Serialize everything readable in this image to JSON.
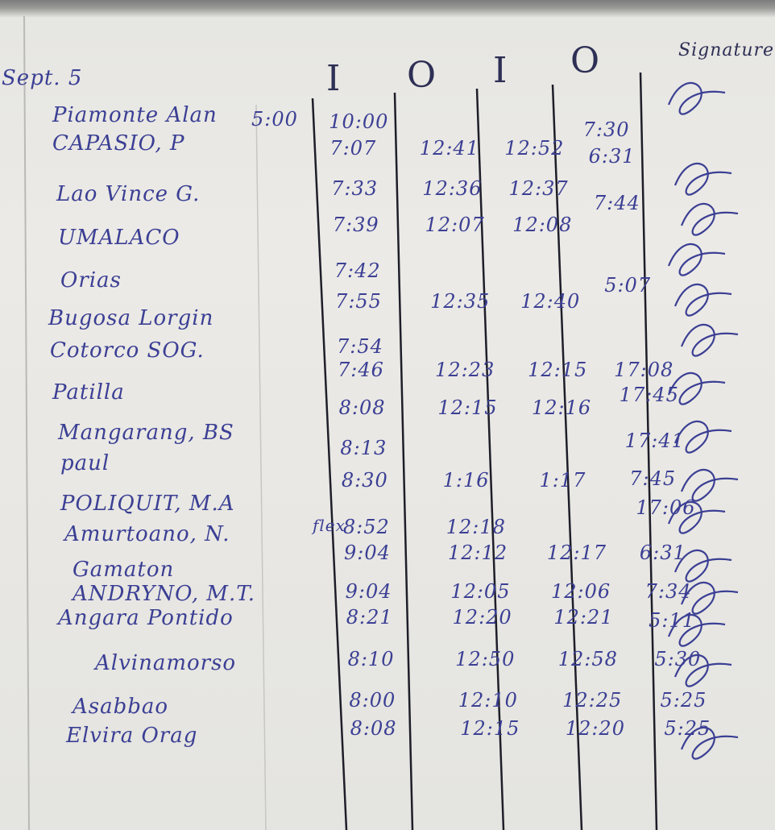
{
  "date": "Sept. 5",
  "headers": {
    "in1": "I",
    "out1": "O",
    "in2": "I",
    "out2": "O",
    "signature": "Signature"
  },
  "ink_color": "#3b3f94",
  "names": [
    "Piamonte Alan",
    "CAPASIO, P",
    "Lao Vince G.",
    "UMALACO",
    "Orias",
    "Bugosa Lorgin",
    "Cotorco SOG.",
    "Patilla",
    "Mangarang, BS",
    "paul",
    "POLIQUIT, M.A",
    "Amurtoano, N.",
    "Gamaton",
    "ANDRYNO, M.T.",
    "Angara Pontido",
    "Alvinamorso",
    "Asabbao",
    "Elvira Orag"
  ],
  "side_notes": {
    "early": "5:00",
    "flex": "flex"
  },
  "times": [
    {
      "in1": "10:00",
      "out1": "",
      "in2": "",
      "out2": ""
    },
    {
      "in1": "7:07",
      "out1": "12:41",
      "in2": "12:52",
      "out2": "7:30"
    },
    {
      "in1": "7:33",
      "out1": "12:36",
      "in2": "12:37",
      "out2": "6:31"
    },
    {
      "in1": "7:39",
      "out1": "12:07",
      "in2": "12:08",
      "out2": "7:44"
    },
    {
      "in1": "7:42",
      "out1": "",
      "in2": "",
      "out2": ""
    },
    {
      "in1": "7:55",
      "out1": "12:35",
      "in2": "12:40",
      "out2": "5:07"
    },
    {
      "in1": "7:54",
      "out1": "",
      "in2": "",
      "out2": ""
    },
    {
      "in1": "7:46",
      "out1": "12:23",
      "in2": "12:15",
      "out2": "17:08"
    },
    {
      "in1": "8:08",
      "out1": "12:15",
      "in2": "12:16",
      "out2": "17:45"
    },
    {
      "in1": "8:13",
      "out1": "",
      "in2": "",
      "out2": "17:41"
    },
    {
      "in1": "8:30",
      "out1": "1:16",
      "in2": "1:17",
      "out2": "7:45"
    },
    {
      "in1": "8:52",
      "out1": "12:18",
      "in2": "",
      "out2": "17:06"
    },
    {
      "in1": "9:04",
      "out1": "12:12",
      "in2": "12:17",
      "out2": "6:31"
    },
    {
      "in1": "9:04",
      "out1": "12:05",
      "in2": "12:06",
      "out2": "7:34"
    },
    {
      "in1": "8:21",
      "out1": "12:20",
      "in2": "12:21",
      "out2": "5:11"
    },
    {
      "in1": "8:10",
      "out1": "12:50",
      "in2": "12:58",
      "out2": "5:30"
    },
    {
      "in1": "8:00",
      "out1": "12:10",
      "in2": "12:25",
      "out2": "5:25"
    },
    {
      "in1": "8:08",
      "out1": "12:15",
      "in2": "12:20",
      "out2": "5:25"
    }
  ]
}
